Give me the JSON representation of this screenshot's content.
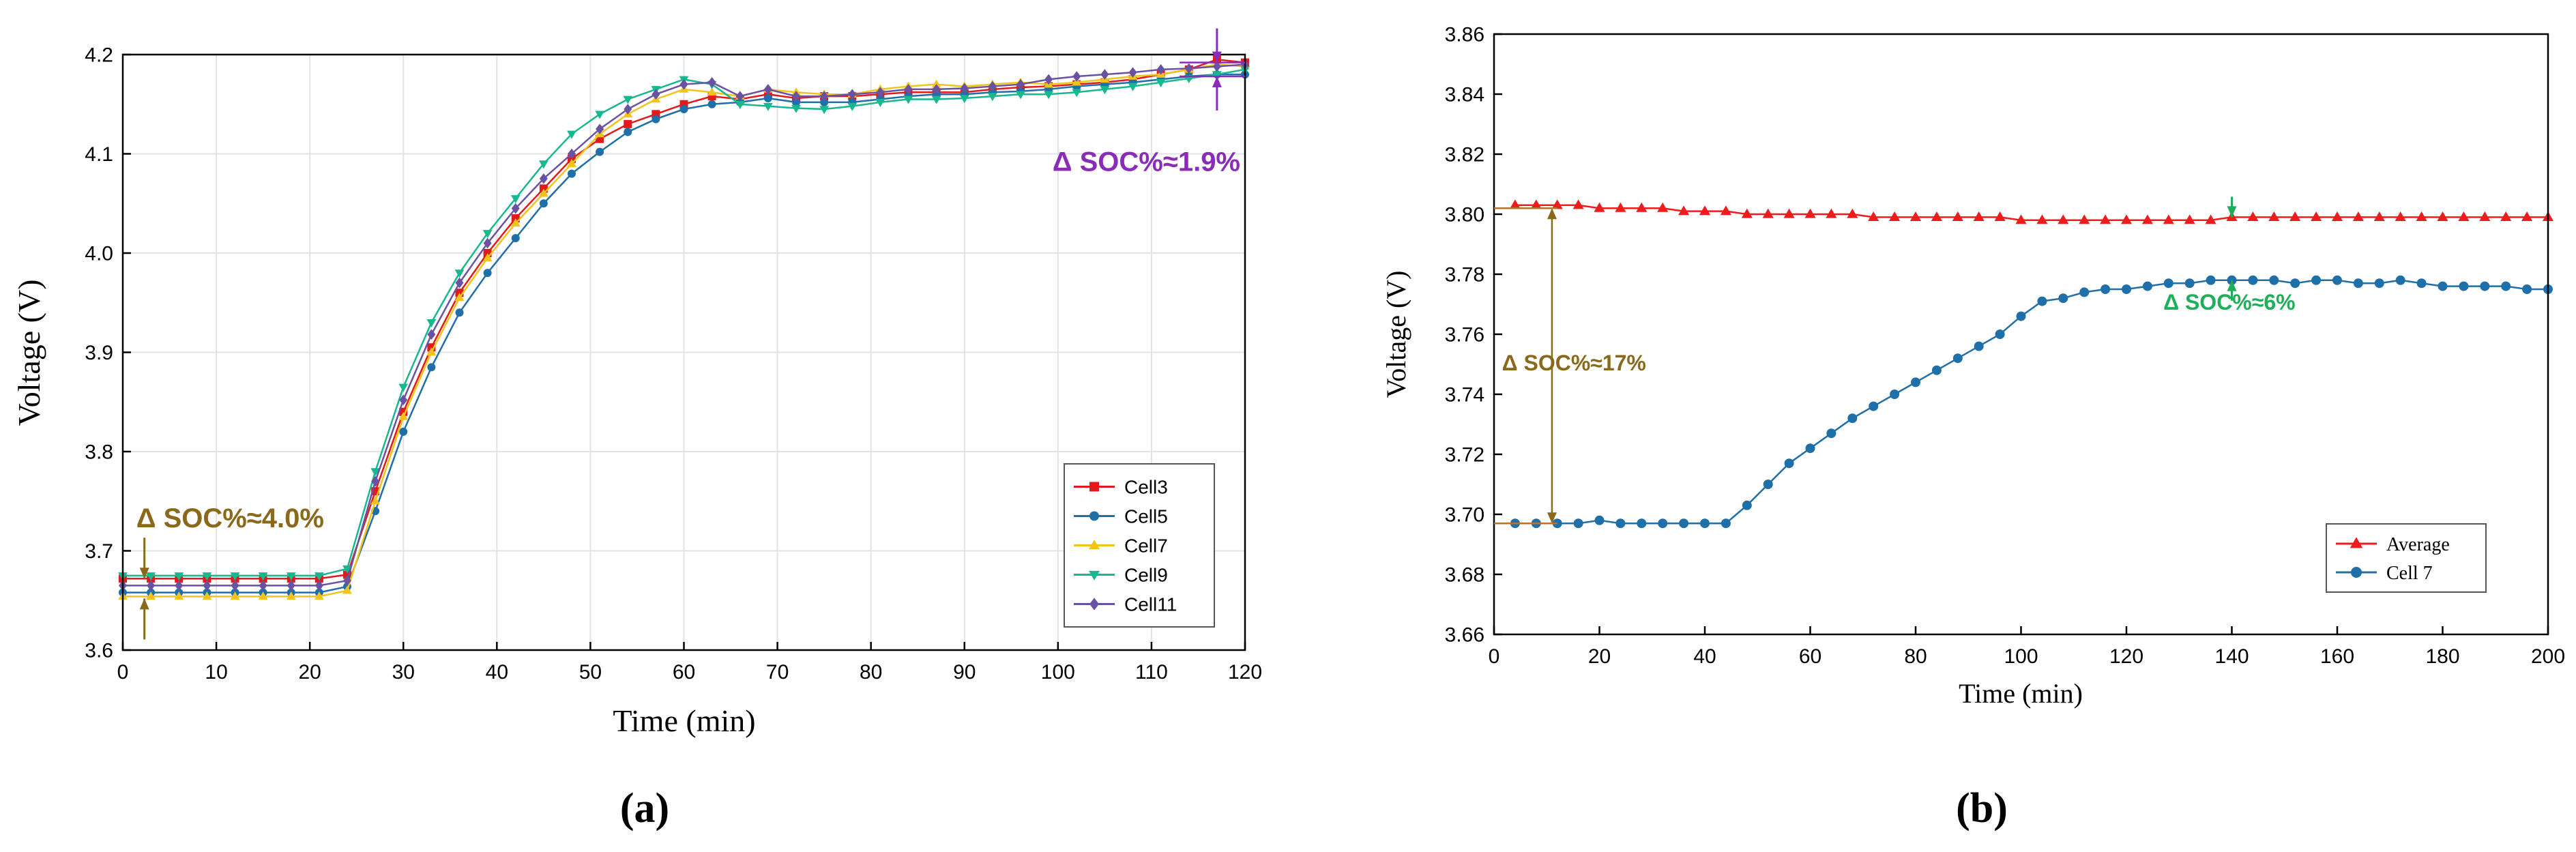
{
  "chart_data": [
    {
      "panel_label": "(a)",
      "type": "line",
      "xlabel": "Time (min)",
      "ylabel": "Voltage (V)",
      "xlim": [
        0,
        120
      ],
      "ylim": [
        3.6,
        4.2
      ],
      "xticks": [
        0,
        10,
        20,
        30,
        40,
        50,
        60,
        70,
        80,
        90,
        100,
        110,
        120
      ],
      "yticks": [
        3.6,
        3.7,
        3.8,
        3.9,
        4.0,
        4.1,
        4.2
      ],
      "grid": true,
      "legend_position": "bottom-right",
      "annotations": [
        {
          "text": "Δ SOC%≈4.0%",
          "x": 1,
          "y_top": 3.672,
          "y_bottom": 3.652
        },
        {
          "text": "Δ SOC%≈1.9%",
          "x": 117,
          "y_top": 4.192,
          "y_bottom": 4.178
        }
      ],
      "x": [
        0,
        3,
        6,
        9,
        12,
        15,
        18,
        21,
        24,
        27,
        30,
        33,
        36,
        39,
        42,
        45,
        48,
        51,
        54,
        57,
        60,
        63,
        66,
        69,
        72,
        75,
        78,
        81,
        84,
        87,
        90,
        93,
        96,
        99,
        102,
        105,
        108,
        111,
        114,
        117,
        120
      ],
      "series": [
        {
          "name": "Cell3",
          "color": "#e31a1c",
          "marker": "square",
          "values": [
            3.672,
            3.672,
            3.672,
            3.672,
            3.672,
            3.672,
            3.672,
            3.672,
            3.676,
            3.76,
            3.84,
            3.905,
            3.96,
            4.0,
            4.035,
            4.065,
            4.095,
            4.115,
            4.13,
            4.14,
            4.15,
            4.158,
            4.155,
            4.16,
            4.156,
            4.158,
            4.158,
            4.16,
            4.162,
            4.162,
            4.162,
            4.165,
            4.167,
            4.168,
            4.17,
            4.172,
            4.175,
            4.18,
            4.185,
            4.195,
            4.192
          ]
        },
        {
          "name": "Cell5",
          "color": "#1f6fa8",
          "marker": "circle",
          "values": [
            3.658,
            3.658,
            3.658,
            3.658,
            3.658,
            3.658,
            3.658,
            3.658,
            3.664,
            3.74,
            3.82,
            3.885,
            3.94,
            3.98,
            4.015,
            4.05,
            4.08,
            4.102,
            4.122,
            4.135,
            4.145,
            4.15,
            4.152,
            4.156,
            4.152,
            4.152,
            4.152,
            4.155,
            4.158,
            4.16,
            4.16,
            4.162,
            4.163,
            4.165,
            4.168,
            4.17,
            4.172,
            4.175,
            4.178,
            4.18,
            4.18
          ]
        },
        {
          "name": "Cell7",
          "color": "#f2c418",
          "marker": "triangle-up",
          "values": [
            3.654,
            3.654,
            3.654,
            3.654,
            3.654,
            3.654,
            3.654,
            3.654,
            3.66,
            3.75,
            3.835,
            3.9,
            3.955,
            3.995,
            4.03,
            4.06,
            4.09,
            4.12,
            4.14,
            4.155,
            4.165,
            4.162,
            4.158,
            4.165,
            4.162,
            4.16,
            4.16,
            4.165,
            4.168,
            4.17,
            4.168,
            4.17,
            4.172,
            4.17,
            4.172,
            4.175,
            4.178,
            4.18,
            4.185,
            4.19,
            4.188
          ]
        },
        {
          "name": "Cell9",
          "color": "#17b890",
          "marker": "triangle-down",
          "values": [
            3.675,
            3.675,
            3.675,
            3.675,
            3.675,
            3.675,
            3.675,
            3.675,
            3.682,
            3.78,
            3.865,
            3.93,
            3.98,
            4.02,
            4.055,
            4.09,
            4.12,
            4.14,
            4.155,
            4.165,
            4.175,
            4.17,
            4.15,
            4.148,
            4.146,
            4.145,
            4.148,
            4.152,
            4.155,
            4.155,
            4.156,
            4.158,
            4.16,
            4.16,
            4.162,
            4.165,
            4.168,
            4.172,
            4.176,
            4.18,
            4.185
          ]
        },
        {
          "name": "Cell11",
          "color": "#6a52a3",
          "marker": "diamond",
          "values": [
            3.665,
            3.665,
            3.665,
            3.665,
            3.665,
            3.665,
            3.665,
            3.665,
            3.67,
            3.77,
            3.852,
            3.918,
            3.97,
            4.01,
            4.045,
            4.075,
            4.1,
            4.125,
            4.145,
            4.16,
            4.17,
            4.172,
            4.158,
            4.165,
            4.158,
            4.158,
            4.16,
            4.162,
            4.165,
            4.165,
            4.166,
            4.168,
            4.17,
            4.175,
            4.178,
            4.18,
            4.182,
            4.185,
            4.186,
            4.188,
            4.19
          ]
        }
      ]
    },
    {
      "panel_label": "(b)",
      "type": "line",
      "xlabel": "Time (min)",
      "ylabel": "Voltage (V)",
      "xlim": [
        0,
        200
      ],
      "ylim": [
        3.66,
        3.86
      ],
      "xticks": [
        0,
        20,
        40,
        60,
        80,
        100,
        120,
        140,
        160,
        180,
        200
      ],
      "yticks": [
        3.66,
        3.68,
        3.7,
        3.72,
        3.74,
        3.76,
        3.78,
        3.8,
        3.82,
        3.84,
        3.86
      ],
      "grid": false,
      "legend_position": "bottom-right",
      "annotations": [
        {
          "text": "Δ SOC%≈17%",
          "x": 11,
          "y_top": 3.802,
          "y_bottom": 3.697
        },
        {
          "text": "Δ SOC%≈6%",
          "x": 140,
          "y_top": 3.799,
          "y_bottom": 3.778
        }
      ],
      "x": [
        4,
        8,
        12,
        16,
        20,
        24,
        28,
        32,
        36,
        40,
        44,
        48,
        52,
        56,
        60,
        64,
        68,
        72,
        76,
        80,
        84,
        88,
        92,
        96,
        100,
        104,
        108,
        112,
        116,
        120,
        124,
        128,
        132,
        136,
        140,
        144,
        148,
        152,
        156,
        160,
        164,
        168,
        172,
        176,
        180,
        184,
        188,
        192,
        196,
        200
      ],
      "series": [
        {
          "name": "Average",
          "color": "#ee1c1c",
          "marker": "triangle-up",
          "values": [
            3.803,
            3.803,
            3.803,
            3.803,
            3.802,
            3.802,
            3.802,
            3.802,
            3.801,
            3.801,
            3.801,
            3.8,
            3.8,
            3.8,
            3.8,
            3.8,
            3.8,
            3.799,
            3.799,
            3.799,
            3.799,
            3.799,
            3.799,
            3.799,
            3.798,
            3.798,
            3.798,
            3.798,
            3.798,
            3.798,
            3.798,
            3.798,
            3.798,
            3.798,
            3.799,
            3.799,
            3.799,
            3.799,
            3.799,
            3.799,
            3.799,
            3.799,
            3.799,
            3.799,
            3.799,
            3.799,
            3.799,
            3.799,
            3.799,
            3.799
          ]
        },
        {
          "name": "Cell 7",
          "color": "#1f6fa8",
          "marker": "circle",
          "values": [
            3.697,
            3.697,
            3.697,
            3.697,
            3.698,
            3.697,
            3.697,
            3.697,
            3.697,
            3.697,
            3.697,
            3.703,
            3.71,
            3.717,
            3.722,
            3.727,
            3.732,
            3.736,
            3.74,
            3.744,
            3.748,
            3.752,
            3.756,
            3.76,
            3.766,
            3.771,
            3.772,
            3.774,
            3.775,
            3.775,
            3.776,
            3.777,
            3.777,
            3.778,
            3.778,
            3.778,
            3.778,
            3.777,
            3.778,
            3.778,
            3.777,
            3.777,
            3.778,
            3.777,
            3.776,
            3.776,
            3.776,
            3.776,
            3.775,
            3.775
          ]
        }
      ]
    }
  ],
  "colors": {
    "axis": "#000000",
    "grid": "#e3e3e3",
    "annotation_gold": "#8a6a1a",
    "annotation_purple": "#8a2cb8",
    "annotation_green": "#1fae5a",
    "baseline_line": "#b87333"
  }
}
